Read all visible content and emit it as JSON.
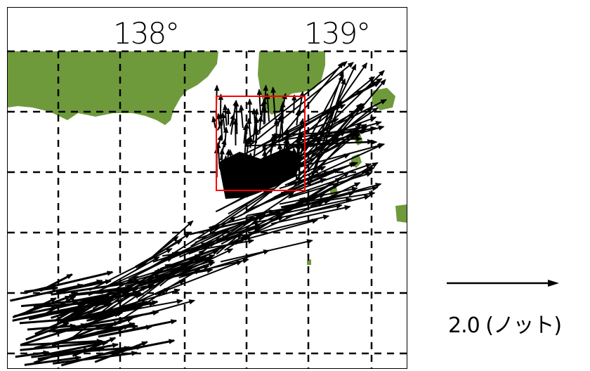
{
  "map": {
    "lon_labels": [
      "138°",
      "139°"
    ],
    "land_color": "#6e9a3c",
    "grid_style": "dashed",
    "highlight_box_color": "#ff0000",
    "vector_color": "#000000"
  },
  "legend": {
    "label": "2.0 (ノット)",
    "arrow_value": 2.0
  }
}
